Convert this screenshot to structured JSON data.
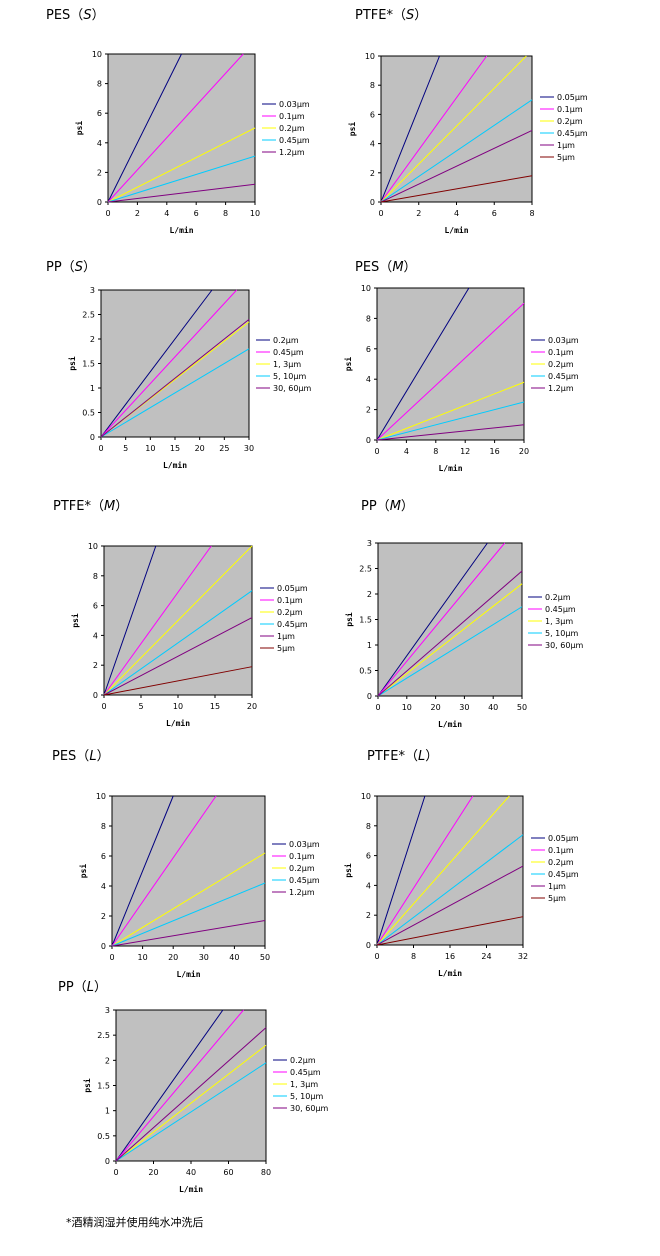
{
  "footnote": "*酒精润湿并使用纯水冲洗后",
  "legend_unit": "μm",
  "chart_data": [
    {
      "type": "line",
      "title": "PES",
      "subtitle": "S",
      "xlabel": "L/min",
      "ylabel": "psi",
      "xlim": [
        0,
        10
      ],
      "ylim": [
        0,
        10
      ],
      "xticks": [
        0,
        2,
        4,
        6,
        8,
        10
      ],
      "yticks": [
        0,
        2,
        4,
        6,
        8,
        10
      ],
      "legend": "right",
      "series": [
        {
          "name": "0.03μm",
          "color": "#00007f",
          "x": [
            0,
            5
          ],
          "y": [
            0,
            10
          ]
        },
        {
          "name": "0.1μm",
          "color": "#ff00ff",
          "x": [
            0,
            9.2
          ],
          "y": [
            0,
            10
          ]
        },
        {
          "name": "0.2μm",
          "color": "#ffff00",
          "x": [
            0,
            10
          ],
          "y": [
            0,
            5
          ]
        },
        {
          "name": "0.45μm",
          "color": "#00ccff",
          "x": [
            0,
            10
          ],
          "y": [
            0,
            3.1
          ]
        },
        {
          "name": "1.2μm",
          "color": "#800080",
          "x": [
            0,
            10
          ],
          "y": [
            0,
            1.2
          ]
        }
      ]
    },
    {
      "type": "line",
      "title": "PTFE*",
      "subtitle": "S",
      "xlabel": "L/min",
      "ylabel": "psi",
      "xlim": [
        0,
        8
      ],
      "ylim": [
        0,
        10
      ],
      "xticks": [
        0,
        2,
        4,
        6,
        8
      ],
      "yticks": [
        0,
        2,
        4,
        6,
        8,
        10
      ],
      "legend": "right",
      "series": [
        {
          "name": "0.05μm",
          "color": "#00007f",
          "x": [
            0,
            3.1
          ],
          "y": [
            0,
            10
          ]
        },
        {
          "name": "0.1μm",
          "color": "#ff00ff",
          "x": [
            0,
            5.6
          ],
          "y": [
            0,
            10
          ]
        },
        {
          "name": "0.2μm",
          "color": "#ffff00",
          "x": [
            0,
            7.7
          ],
          "y": [
            0,
            10
          ]
        },
        {
          "name": "0.45μm",
          "color": "#00ccff",
          "x": [
            0,
            8
          ],
          "y": [
            0,
            7
          ]
        },
        {
          "name": "1μm",
          "color": "#800080",
          "x": [
            0,
            8
          ],
          "y": [
            0,
            4.9
          ]
        },
        {
          "name": "5μm",
          "color": "#800000",
          "x": [
            0,
            8
          ],
          "y": [
            0,
            1.8
          ]
        }
      ]
    },
    {
      "type": "line",
      "title": "PP",
      "subtitle": "S",
      "xlabel": "L/min",
      "ylabel": "psi",
      "xlim": [
        0,
        30
      ],
      "ylim": [
        0,
        3
      ],
      "xticks": [
        0,
        5,
        10,
        15,
        20,
        25,
        30
      ],
      "yticks": [
        0,
        0.5,
        1,
        1.5,
        2,
        2.5,
        3
      ],
      "legend": "right",
      "series": [
        {
          "name": "0.2μm",
          "color": "#00007f",
          "x": [
            0,
            22.5
          ],
          "y": [
            0,
            3
          ]
        },
        {
          "name": "0.45μm",
          "color": "#ff00ff",
          "x": [
            0,
            27.5
          ],
          "y": [
            0,
            3
          ]
        },
        {
          "name": "1, 3μm",
          "color": "#ffff00",
          "x": [
            0,
            30
          ],
          "y": [
            0,
            2.35
          ]
        },
        {
          "name": "5, 10μm",
          "color": "#00ccff",
          "x": [
            0,
            30
          ],
          "y": [
            0,
            1.8
          ]
        },
        {
          "name": "30, 60μm",
          "color": "#800080",
          "x": [
            0,
            30
          ],
          "y": [
            0,
            2.4
          ]
        }
      ]
    },
    {
      "type": "line",
      "title": "PES",
      "subtitle": "M",
      "xlabel": "L/min",
      "ylabel": "psi",
      "xlim": [
        0,
        20
      ],
      "ylim": [
        0,
        10
      ],
      "xticks": [
        0,
        4,
        8,
        12,
        16,
        20
      ],
      "yticks": [
        0,
        2,
        4,
        6,
        8,
        10
      ],
      "legend": "right",
      "series": [
        {
          "name": "0.03μm",
          "color": "#00007f",
          "x": [
            0,
            12.5
          ],
          "y": [
            0,
            10
          ]
        },
        {
          "name": "0.1μm",
          "color": "#ff00ff",
          "x": [
            0,
            20
          ],
          "y": [
            0,
            9
          ]
        },
        {
          "name": "0.2μm",
          "color": "#ffff00",
          "x": [
            0,
            20
          ],
          "y": [
            0,
            3.8
          ]
        },
        {
          "name": "0.45μm",
          "color": "#00ccff",
          "x": [
            0,
            20
          ],
          "y": [
            0,
            2.5
          ]
        },
        {
          "name": "1.2μm",
          "color": "#800080",
          "x": [
            0,
            20
          ],
          "y": [
            0,
            1
          ]
        }
      ]
    },
    {
      "type": "line",
      "title": "PTFE*",
      "subtitle": "M",
      "xlabel": "L/min",
      "ylabel": "psi",
      "xlim": [
        0,
        20
      ],
      "ylim": [
        0,
        10
      ],
      "xticks": [
        0,
        5,
        10,
        15,
        20
      ],
      "yticks": [
        0,
        2,
        4,
        6,
        8,
        10
      ],
      "legend": "right",
      "series": [
        {
          "name": "0.05μm",
          "color": "#00007f",
          "x": [
            0,
            7
          ],
          "y": [
            0,
            10
          ]
        },
        {
          "name": "0.1μm",
          "color": "#ff00ff",
          "x": [
            0,
            14.5
          ],
          "y": [
            0,
            10
          ]
        },
        {
          "name": "0.2μm",
          "color": "#ffff00",
          "x": [
            0,
            20
          ],
          "y": [
            0,
            10
          ]
        },
        {
          "name": "0.45μm",
          "color": "#00ccff",
          "x": [
            0,
            20
          ],
          "y": [
            0,
            7
          ]
        },
        {
          "name": "1μm",
          "color": "#800080",
          "x": [
            0,
            20
          ],
          "y": [
            0,
            5.2
          ]
        },
        {
          "name": "5μm",
          "color": "#800000",
          "x": [
            0,
            20
          ],
          "y": [
            0,
            1.9
          ]
        }
      ]
    },
    {
      "type": "line",
      "title": "PP",
      "subtitle": "M",
      "xlabel": "L/min",
      "ylabel": "psi",
      "xlim": [
        0,
        50
      ],
      "ylim": [
        0,
        3
      ],
      "xticks": [
        0,
        10,
        20,
        30,
        40,
        50
      ],
      "yticks": [
        0,
        0.5,
        1,
        1.5,
        2,
        2.5,
        3
      ],
      "legend": "right",
      "series": [
        {
          "name": "0.2μm",
          "color": "#00007f",
          "x": [
            0,
            38
          ],
          "y": [
            0,
            3
          ]
        },
        {
          "name": "0.45μm",
          "color": "#ff00ff",
          "x": [
            0,
            44
          ],
          "y": [
            0,
            3
          ]
        },
        {
          "name": "1, 3μm",
          "color": "#ffff00",
          "x": [
            0,
            50
          ],
          "y": [
            0,
            2.2
          ]
        },
        {
          "name": "5, 10μm",
          "color": "#00ccff",
          "x": [
            0,
            50
          ],
          "y": [
            0,
            1.75
          ]
        },
        {
          "name": "30, 60μm",
          "color": "#800080",
          "x": [
            0,
            50
          ],
          "y": [
            0,
            2.45
          ]
        }
      ]
    },
    {
      "type": "line",
      "title": "PES",
      "subtitle": "L",
      "xlabel": "L/min",
      "ylabel": "psi",
      "xlim": [
        0,
        50
      ],
      "ylim": [
        0,
        10
      ],
      "xticks": [
        0,
        10,
        20,
        30,
        40,
        50
      ],
      "yticks": [
        0,
        2,
        4,
        6,
        8,
        10
      ],
      "legend": "right",
      "series": [
        {
          "name": "0.03μm",
          "color": "#00007f",
          "x": [
            0,
            20
          ],
          "y": [
            0,
            10
          ]
        },
        {
          "name": "0.1μm",
          "color": "#ff00ff",
          "x": [
            0,
            34
          ],
          "y": [
            0,
            10
          ]
        },
        {
          "name": "0.2μm",
          "color": "#ffff00",
          "x": [
            0,
            50
          ],
          "y": [
            0,
            6.2
          ]
        },
        {
          "name": "0.45μm",
          "color": "#00ccff",
          "x": [
            0,
            50
          ],
          "y": [
            0,
            4.2
          ]
        },
        {
          "name": "1.2μm",
          "color": "#800080",
          "x": [
            0,
            50
          ],
          "y": [
            0,
            1.7
          ]
        }
      ]
    },
    {
      "type": "line",
      "title": "PTFE*",
      "subtitle": "L",
      "xlabel": "L/min",
      "ylabel": "psi",
      "xlim": [
        0,
        32
      ],
      "ylim": [
        0,
        10
      ],
      "xticks": [
        0,
        8,
        16,
        24,
        32
      ],
      "yticks": [
        0,
        2,
        4,
        6,
        8,
        10
      ],
      "legend": "right",
      "series": [
        {
          "name": "0.05μm",
          "color": "#00007f",
          "x": [
            0,
            10.5
          ],
          "y": [
            0,
            10
          ]
        },
        {
          "name": "0.1μm",
          "color": "#ff00ff",
          "x": [
            0,
            21
          ],
          "y": [
            0,
            10
          ]
        },
        {
          "name": "0.2μm",
          "color": "#ffff00",
          "x": [
            0,
            29
          ],
          "y": [
            0,
            10
          ]
        },
        {
          "name": "0.45μm",
          "color": "#00ccff",
          "x": [
            0,
            32
          ],
          "y": [
            0,
            7.4
          ]
        },
        {
          "name": "1μm",
          "color": "#800080",
          "x": [
            0,
            32
          ],
          "y": [
            0,
            5.3
          ]
        },
        {
          "name": "5μm",
          "color": "#800000",
          "x": [
            0,
            32
          ],
          "y": [
            0,
            1.9
          ]
        }
      ]
    },
    {
      "type": "line",
      "title": "PP",
      "subtitle": "L",
      "xlabel": "L/min",
      "ylabel": "psi",
      "xlim": [
        0,
        80
      ],
      "ylim": [
        0,
        3
      ],
      "xticks": [
        0,
        20,
        40,
        60,
        80
      ],
      "yticks": [
        0,
        0.5,
        1,
        1.5,
        2,
        2.5,
        3
      ],
      "legend": "right",
      "series": [
        {
          "name": "0.2μm",
          "color": "#00007f",
          "x": [
            0,
            57
          ],
          "y": [
            0,
            3
          ]
        },
        {
          "name": "0.45μm",
          "color": "#ff00ff",
          "x": [
            0,
            68
          ],
          "y": [
            0,
            3
          ]
        },
        {
          "name": "1, 3μm",
          "color": "#ffff00",
          "x": [
            0,
            80
          ],
          "y": [
            0,
            2.3
          ]
        },
        {
          "name": "5, 10μm",
          "color": "#00ccff",
          "x": [
            0,
            80
          ],
          "y": [
            0,
            1.95
          ]
        },
        {
          "name": "30, 60μm",
          "color": "#800080",
          "x": [
            0,
            80
          ],
          "y": [
            0,
            2.65
          ]
        }
      ]
    }
  ]
}
